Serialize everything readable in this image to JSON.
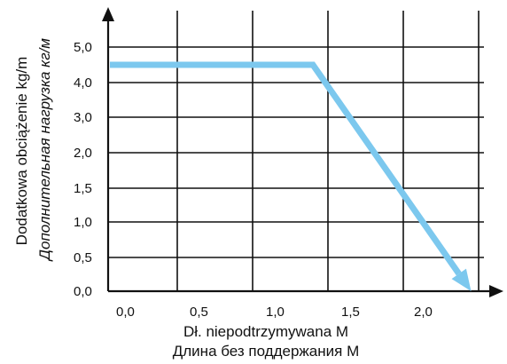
{
  "chart_data": {
    "type": "line",
    "xlabel": "Dł. niepodtrzymywana M",
    "xlabel_secondary": "Длина без поддержания М",
    "ylabel": "Dodatkowa obciążenie kg/m",
    "ylabel_secondary": "Дополнительная нагрузка  кг/м",
    "x_ticks": [
      "0,0",
      "0,5",
      "1,0",
      "1,5",
      "2,0"
    ],
    "y_ticks": [
      "0,0",
      "0,5",
      "1,0",
      "1,5",
      "2,0",
      "3,0",
      "4,0",
      "5,0"
    ],
    "xlim": [
      -0.1,
      2.6
    ],
    "grid": true,
    "series": [
      {
        "color": "#7cc8ee",
        "points": [
          {
            "x": 0.0,
            "y": 4.5
          },
          {
            "x": 1.3,
            "y": 4.5
          },
          {
            "x": 2.35,
            "y": 0.0
          }
        ]
      }
    ]
  }
}
